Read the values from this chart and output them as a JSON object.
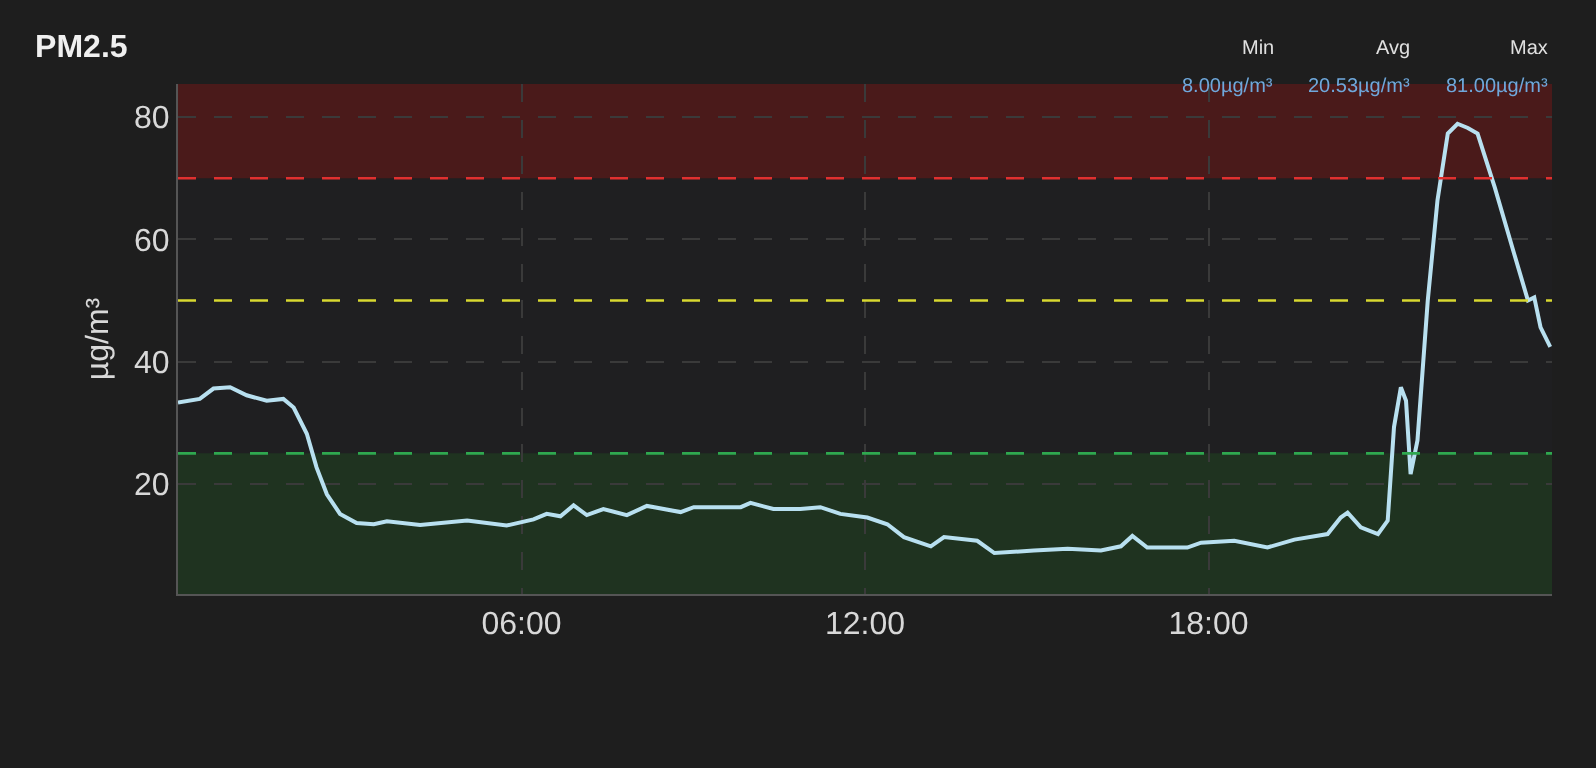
{
  "chart_data": {
    "type": "line",
    "title": "PM2.5",
    "ylabel": "µg/m³",
    "annotations": [
      "Min",
      "Avg",
      "Max",
      "8.00µg/m³",
      "20.53µg/m³",
      "81.00µg/m³"
    ],
    "xlim": [
      0,
      24
    ],
    "xticks": [
      {
        "value": 6,
        "label": "06:00"
      },
      {
        "value": 12,
        "label": "12:00"
      },
      {
        "value": 18,
        "label": "18:00"
      }
    ],
    "ylim": [
      2,
      85.4
    ],
    "yticks": [
      20,
      40,
      60,
      80
    ],
    "grid": true,
    "ref_lines": [
      {
        "axis": "y",
        "value": 70,
        "label": null,
        "color": "#e0302f",
        "line_style": "dashed"
      },
      {
        "axis": "y",
        "value": 50,
        "label": null,
        "color": "#d8d830",
        "line_style": "dashed"
      },
      {
        "axis": "y",
        "value": 25,
        "label": null,
        "color": "#2fa84f",
        "line_style": "dashed"
      }
    ],
    "bands": [
      {
        "axis": "y",
        "from": 70,
        "to": 85.4,
        "label": null,
        "color": "#4a1a1a"
      },
      {
        "axis": "y",
        "from": 2,
        "to": 25,
        "label": null,
        "color": "#1f3320"
      }
    ],
    "series": [
      {
        "color": "#b8e0f0",
        "x": [
          0,
          0.38,
          0.62,
          0.91,
          1.2,
          1.55,
          1.84,
          2.02,
          2.25,
          2.42,
          2.6,
          2.83,
          3.12,
          3.42,
          3.65,
          4.23,
          5.05,
          5.74,
          6.21,
          6.44,
          6.68,
          6.91,
          7.14,
          7.43,
          7.84,
          8.19,
          8.78,
          9.01,
          9.83,
          10.0,
          10.4,
          10.87,
          11.22,
          11.57,
          12.04,
          12.39,
          12.68,
          13.15,
          13.38,
          13.96,
          14.26,
          14.95,
          15.54,
          16.12,
          16.47,
          16.67,
          16.93,
          17.63,
          17.87,
          18.45,
          19.03,
          19.5,
          20.08,
          20.31,
          20.43,
          20.66,
          20.96,
          21.13,
          21.24,
          21.36,
          21.45,
          21.53,
          21.65,
          21.83,
          22.0,
          22.18,
          22.35,
          22.53,
          22.7,
          23.0,
          23.34,
          23.58,
          23.69,
          23.8,
          23.97
        ],
        "values": [
          33.3,
          33.9,
          35.6,
          35.8,
          34.5,
          33.6,
          33.9,
          32.5,
          28.2,
          22.7,
          18.3,
          15.1,
          13.6,
          13.4,
          13.9,
          13.3,
          14.0,
          13.2,
          14.2,
          15.1,
          14.7,
          16.5,
          14.9,
          15.9,
          14.9,
          16.4,
          15.4,
          16.2,
          16.2,
          16.9,
          15.9,
          15.9,
          16.2,
          15.1,
          14.5,
          13.4,
          11.3,
          9.8,
          11.3,
          10.7,
          8.7,
          9.1,
          9.4,
          9.1,
          9.8,
          11.5,
          9.6,
          9.6,
          10.4,
          10.7,
          9.6,
          10.9,
          11.8,
          14.5,
          15.3,
          12.9,
          11.8,
          14.0,
          29.3,
          35.8,
          33.6,
          21.6,
          27.1,
          50.0,
          66.4,
          77.3,
          78.9,
          78.2,
          77.3,
          68.5,
          57.6,
          50.0,
          50.5,
          45.6,
          42.4
        ]
      }
    ]
  }
}
